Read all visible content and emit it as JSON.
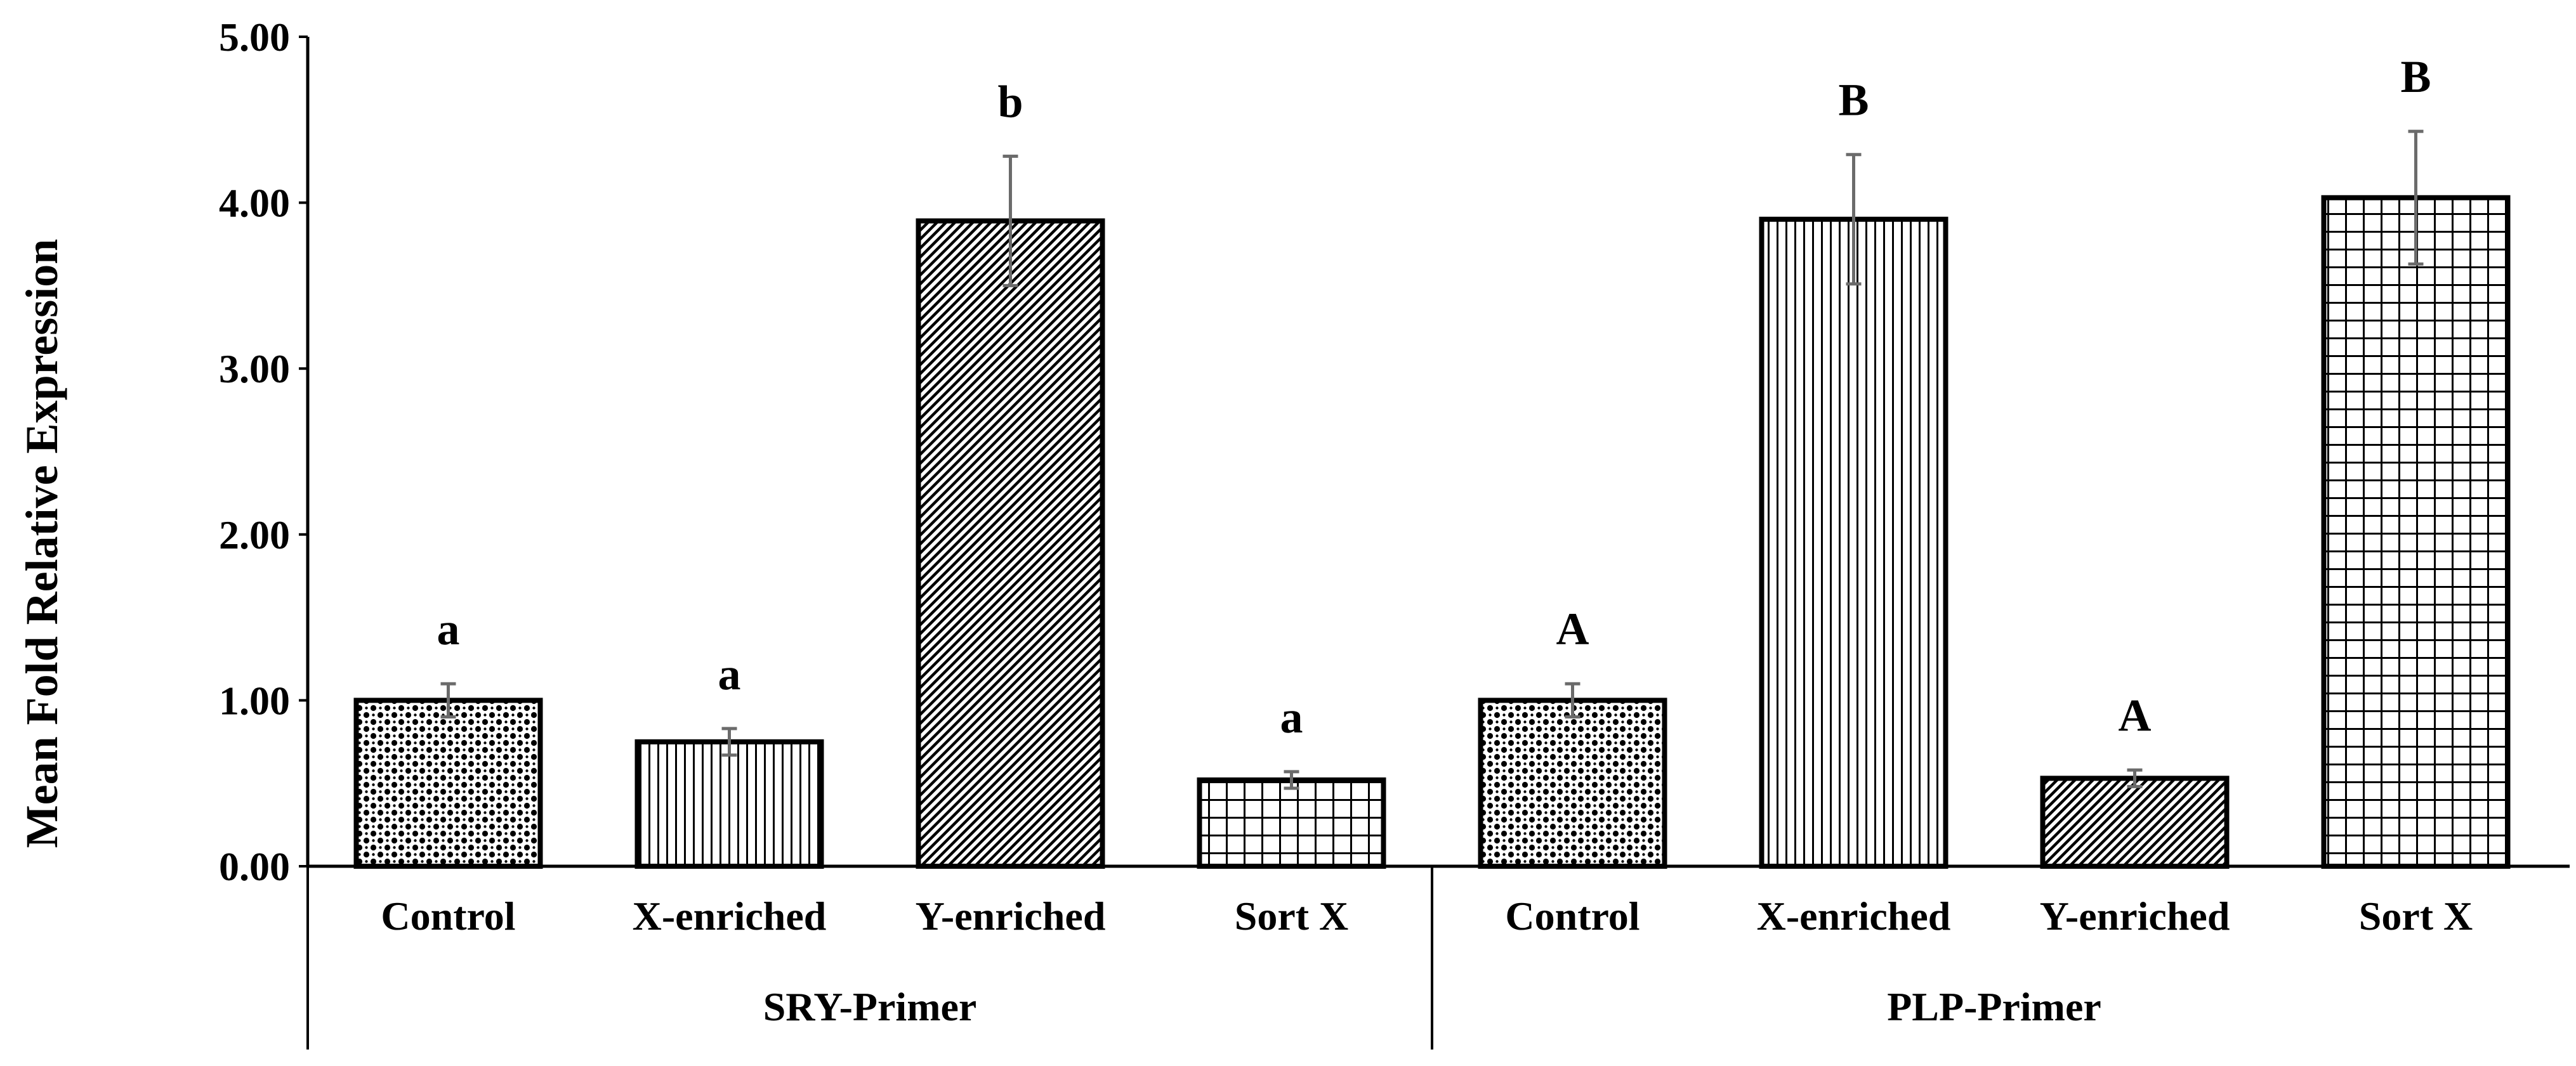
{
  "chart_data": {
    "type": "bar",
    "title": "",
    "xlabel": "",
    "ylabel": "Mean Fold Relative Expression",
    "ylim": [
      0,
      5
    ],
    "yticks": [
      "0.00",
      "1.00",
      "2.00",
      "3.00",
      "4.00",
      "5.00"
    ],
    "grid": false,
    "legend": "none",
    "groups": [
      {
        "name": "SRY-Primer",
        "bars": [
          {
            "category": "Control",
            "value": 1.0,
            "error": 0.1,
            "letter": "a",
            "pattern": "dots"
          },
          {
            "category": "X-enriched",
            "value": 0.75,
            "error": 0.08,
            "letter": "a",
            "pattern": "vertical"
          },
          {
            "category": "Y-enriched",
            "value": 3.89,
            "error": 0.39,
            "letter": "b",
            "pattern": "diagonal"
          },
          {
            "category": "Sort X",
            "value": 0.52,
            "error": 0.05,
            "letter": "a",
            "pattern": "grid"
          }
        ]
      },
      {
        "name": "PLP-Primer",
        "bars": [
          {
            "category": "Control",
            "value": 1.0,
            "error": 0.1,
            "letter": "A",
            "pattern": "dots"
          },
          {
            "category": "X-enriched",
            "value": 3.9,
            "error": 0.39,
            "letter": "B",
            "pattern": "vertical"
          },
          {
            "category": "Y-enriched",
            "value": 0.53,
            "error": 0.05,
            "letter": "A",
            "pattern": "diagonal"
          },
          {
            "category": "Sort X",
            "value": 4.03,
            "error": 0.4,
            "letter": "B",
            "pattern": "grid"
          }
        ]
      }
    ],
    "colors": {
      "bar_fill": "#ffffff",
      "bar_stroke": "#000000",
      "pattern_ink": "#000000",
      "error_bar": "#6b6b6b",
      "text": "#000000"
    }
  }
}
